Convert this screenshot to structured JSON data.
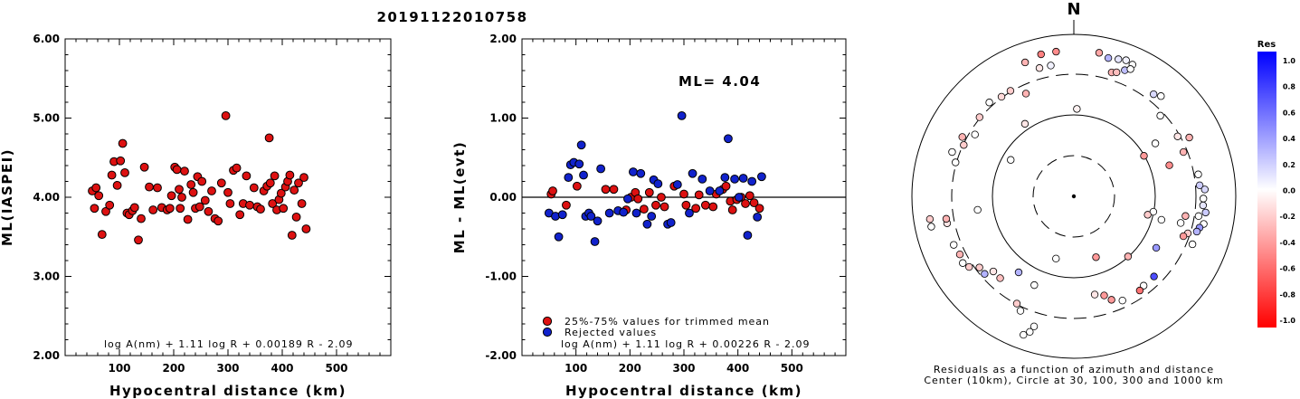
{
  "chart_data": [
    {
      "type": "scatter",
      "title": "20191122010758",
      "xlabel": "Hypocentral distance (km)",
      "ylabel": "ML(IASPEI)",
      "xlim": [
        0,
        600
      ],
      "ylim": [
        2.0,
        6.0
      ],
      "xticks": [
        "100",
        "200",
        "300",
        "400",
        "500"
      ],
      "yticks": [
        "2.00",
        "3.00",
        "4.00",
        "5.00",
        "6.00"
      ],
      "formula": "log A(nm) + 1.11 log R + 0.00189 R - 2.09",
      "colors": {
        "point": "#dd1111",
        "edge": "#000000"
      },
      "series": [
        {
          "x": [
            50,
            54,
            57,
            62,
            68,
            75,
            82,
            86,
            90,
            96,
            102,
            106,
            110,
            114,
            118,
            124,
            128,
            135,
            140,
            146,
            155,
            162,
            170,
            178,
            188,
            193,
            196,
            202,
            206,
            210,
            212,
            215,
            220,
            226,
            232,
            236,
            240,
            244,
            248,
            252,
            258,
            264,
            270,
            276,
            282,
            288,
            296,
            300,
            304,
            310,
            316,
            322,
            328,
            334,
            340,
            348,
            354,
            360,
            366,
            372,
            376,
            378,
            382,
            386,
            390,
            394,
            398,
            402,
            406,
            410,
            414,
            418,
            422,
            426,
            430,
            436,
            440,
            444
          ],
          "y": [
            4.08,
            3.86,
            4.12,
            4.02,
            3.53,
            3.82,
            3.9,
            4.28,
            4.45,
            4.15,
            4.46,
            4.68,
            4.31,
            3.8,
            3.78,
            3.83,
            3.87,
            3.46,
            3.73,
            4.38,
            4.13,
            3.84,
            4.12,
            3.87,
            3.84,
            3.86,
            4.02,
            4.38,
            4.35,
            4.1,
            3.86,
            4.0,
            4.33,
            3.72,
            4.16,
            4.06,
            3.86,
            4.26,
            3.88,
            4.2,
            3.96,
            3.82,
            4.08,
            3.73,
            3.7,
            4.18,
            5.03,
            4.06,
            3.92,
            4.34,
            4.37,
            3.78,
            3.92,
            4.27,
            3.9,
            4.12,
            3.88,
            3.85,
            4.08,
            4.14,
            4.75,
            4.18,
            3.92,
            4.27,
            3.84,
            3.97,
            4.05,
            3.86,
            4.13,
            4.2,
            4.28,
            3.52,
            4.09,
            3.75,
            4.18,
            3.92,
            4.25,
            3.6
          ]
        }
      ]
    },
    {
      "type": "scatter",
      "xlabel": "Hypocentral distance (km)",
      "ylabel": "ML - ML(evt)",
      "xlim": [
        0,
        600
      ],
      "ylim": [
        -2.0,
        2.0
      ],
      "xticks": [
        "100",
        "200",
        "300",
        "400",
        "500"
      ],
      "yticks": [
        "-2.00",
        "-1.00",
        "0.00",
        "1.00",
        "2.00"
      ],
      "annotation": "ML= 4.04",
      "formula": "log A(nm) + 1.11 log R + 0.00226 R - 2.09",
      "legend": [
        "25%-75% values for trimmed mean",
        "Rejected values"
      ],
      "colors": {
        "trimmed": "#dd1111",
        "rejected": "#1122cc",
        "edge": "#000000"
      },
      "series": [
        {
          "name": "25%-75% values for trimmed mean",
          "x": [
            54,
            57,
            82,
            102,
            155,
            170,
            193,
            202,
            210,
            215,
            226,
            236,
            248,
            258,
            264,
            282,
            300,
            304,
            322,
            328,
            340,
            354,
            360,
            372,
            378,
            386,
            390,
            398,
            406,
            414,
            422,
            430,
            440
          ],
          "y": [
            0.04,
            0.08,
            -0.1,
            0.14,
            0.1,
            0.1,
            -0.16,
            0.0,
            0.06,
            -0.02,
            -0.15,
            0.06,
            -0.1,
            0.0,
            -0.12,
            0.14,
            0.04,
            -0.1,
            -0.14,
            0.03,
            -0.1,
            -0.12,
            0.04,
            0.1,
            0.14,
            -0.05,
            -0.16,
            -0.03,
            0.0,
            -0.08,
            0.02,
            -0.07,
            -0.14
          ]
        },
        {
          "name": "Rejected values",
          "x": [
            50,
            62,
            68,
            75,
            86,
            90,
            96,
            106,
            110,
            114,
            118,
            124,
            128,
            135,
            140,
            146,
            162,
            178,
            188,
            196,
            206,
            212,
            220,
            232,
            240,
            244,
            252,
            270,
            276,
            288,
            296,
            310,
            316,
            334,
            348,
            366,
            376,
            382,
            394,
            402,
            410,
            418,
            426,
            436,
            444
          ],
          "y": [
            -0.2,
            -0.24,
            -0.5,
            -0.22,
            0.25,
            0.41,
            0.44,
            0.42,
            0.66,
            0.28,
            -0.24,
            -0.2,
            -0.24,
            -0.56,
            -0.3,
            0.36,
            -0.2,
            -0.17,
            -0.19,
            -0.02,
            0.32,
            -0.2,
            0.3,
            -0.34,
            -0.24,
            0.22,
            0.17,
            -0.34,
            -0.32,
            0.16,
            1.03,
            -0.2,
            0.3,
            0.23,
            0.08,
            0.08,
            0.25,
            0.74,
            0.23,
            0.0,
            0.24,
            -0.48,
            0.2,
            -0.25,
            0.26
          ]
        }
      ]
    },
    {
      "type": "scatter",
      "subtype": "polar",
      "north_label": "N",
      "caption_line1": "Residuals as a function of azimuth and distance",
      "caption_line2": "Center (10km), Circle at 30, 100, 300 and 1000 km",
      "colorbar_title": "Res",
      "colorbar_ticks": [
        "1.0",
        "0.8",
        "0.6",
        "0.4",
        "0.2",
        "0.0",
        "-0.2",
        "-0.4",
        "-0.6",
        "-0.8",
        "-1.0"
      ],
      "colorbar_colors": {
        "max": "#0000ff",
        "zero": "#ffffff",
        "min": "#ff0000"
      },
      "points": [
        {
          "az": 2,
          "r": 0.54,
          "res": -0.05
        },
        {
          "az": 350,
          "r": 0.82,
          "res": 0.05
        },
        {
          "az": 345,
          "r": 0.82,
          "res": -0.1
        },
        {
          "az": 340,
          "r": 0.88,
          "res": -0.3
        },
        {
          "az": 347,
          "r": 0.9,
          "res": -0.5
        },
        {
          "az": 353,
          "r": 0.9,
          "res": -0.45
        },
        {
          "az": 10,
          "r": 0.9,
          "res": -0.35
        },
        {
          "az": 14,
          "r": 0.88,
          "res": 0.3
        },
        {
          "az": 18,
          "r": 0.89,
          "res": 0.1
        },
        {
          "az": 21,
          "r": 0.9,
          "res": 0.05
        },
        {
          "az": 24,
          "r": 0.89,
          "res": 0.0
        },
        {
          "az": 17,
          "r": 0.8,
          "res": -0.3
        },
        {
          "az": 19,
          "r": 0.81,
          "res": -0.25
        },
        {
          "az": 22,
          "r": 0.84,
          "res": 0.25
        },
        {
          "az": 24,
          "r": 0.86,
          "res": 0.0
        },
        {
          "az": 38,
          "r": 0.8,
          "res": 0.15
        },
        {
          "az": 41,
          "r": 0.82,
          "res": 0.0
        },
        {
          "az": 47,
          "r": 0.73,
          "res": 0.0
        },
        {
          "az": 63,
          "r": 0.8,
          "res": -0.3
        },
        {
          "az": 60,
          "r": 0.74,
          "res": -0.1
        },
        {
          "az": 68,
          "r": 0.73,
          "res": -0.3
        },
        {
          "az": 57,
          "r": 0.6,
          "res": 0.0
        },
        {
          "az": 60,
          "r": 0.5,
          "res": -0.4
        },
        {
          "az": 72,
          "r": 0.62,
          "res": -0.45
        },
        {
          "az": 80,
          "r": 0.78,
          "res": 0.0
        },
        {
          "az": 85,
          "r": 0.78,
          "res": 0.2
        },
        {
          "az": 87,
          "r": 0.81,
          "res": 0.15
        },
        {
          "az": 91,
          "r": 0.8,
          "res": 0.0
        },
        {
          "az": 94,
          "r": 0.8,
          "res": 0.1
        },
        {
          "az": 97,
          "r": 0.82,
          "res": 0.2
        },
        {
          "az": 99,
          "r": 0.78,
          "res": 0.0
        },
        {
          "az": 102,
          "r": 0.82,
          "res": 0.0
        },
        {
          "az": 104,
          "r": 0.8,
          "res": 0.4
        },
        {
          "az": 106,
          "r": 0.79,
          "res": 0.3
        },
        {
          "az": 108,
          "r": 0.74,
          "res": -0.2
        },
        {
          "az": 100,
          "r": 0.7,
          "res": -0.3
        },
        {
          "az": 104,
          "r": 0.68,
          "res": 0.0
        },
        {
          "az": 110,
          "r": 0.72,
          "res": -0.4
        },
        {
          "az": 112,
          "r": 0.79,
          "res": 0.0
        },
        {
          "az": 101,
          "r": 0.5,
          "res": 0.0
        },
        {
          "az": 105,
          "r": 0.56,
          "res": 0.0
        },
        {
          "az": 104,
          "r": 0.47,
          "res": -0.2
        },
        {
          "az": 122,
          "r": 0.6,
          "res": 0.4
        },
        {
          "az": 138,
          "r": 0.5,
          "res": -0.3
        },
        {
          "az": 135,
          "r": 0.7,
          "res": 0.7
        },
        {
          "az": 142,
          "r": 0.7,
          "res": 0.0
        },
        {
          "az": 145,
          "r": 0.71,
          "res": -0.55
        },
        {
          "az": 155,
          "r": 0.71,
          "res": 0.0
        },
        {
          "az": 160,
          "r": 0.68,
          "res": -0.4
        },
        {
          "az": 163,
          "r": 0.64,
          "res": -0.4
        },
        {
          "az": 168,
          "r": 0.62,
          "res": -0.1
        },
        {
          "az": 160,
          "r": 0.4,
          "res": -0.4
        },
        {
          "az": 196,
          "r": 0.4,
          "res": 0.0
        },
        {
          "az": 204,
          "r": 0.6,
          "res": 0.0
        },
        {
          "az": 208,
          "r": 0.75,
          "res": -0.2
        },
        {
          "az": 205,
          "r": 0.78,
          "res": 0.0
        },
        {
          "az": 197,
          "r": 0.84,
          "res": 0.0
        },
        {
          "az": 198,
          "r": 0.88,
          "res": 0.0
        },
        {
          "az": 200,
          "r": 0.91,
          "res": 0.0
        },
        {
          "az": 216,
          "r": 0.58,
          "res": 0.3
        },
        {
          "az": 222,
          "r": 0.68,
          "res": -0.25
        },
        {
          "az": 227,
          "r": 0.68,
          "res": -0.1
        },
        {
          "az": 229,
          "r": 0.73,
          "res": 0.3
        },
        {
          "az": 233,
          "r": 0.73,
          "res": -0.2
        },
        {
          "az": 236,
          "r": 0.78,
          "res": -0.2
        },
        {
          "az": 239,
          "r": 0.8,
          "res": 0.0
        },
        {
          "az": 243,
          "r": 0.79,
          "res": -0.3
        },
        {
          "az": 248,
          "r": 0.8,
          "res": 0.0
        },
        {
          "az": 258,
          "r": 0.8,
          "res": -0.1
        },
        {
          "az": 258,
          "r": 0.9,
          "res": 0.0
        },
        {
          "az": 260,
          "r": 0.8,
          "res": -0.3
        },
        {
          "az": 261,
          "r": 0.9,
          "res": -0.2
        },
        {
          "az": 262,
          "r": 0.6,
          "res": 0.0
        },
        {
          "az": 286,
          "r": 0.76,
          "res": 0.0
        },
        {
          "az": 290,
          "r": 0.8,
          "res": 0.0
        },
        {
          "az": 295,
          "r": 0.75,
          "res": -0.2
        },
        {
          "az": 298,
          "r": 0.78,
          "res": -0.3
        },
        {
          "az": 302,
          "r": 0.72,
          "res": 0.0
        },
        {
          "az": 310,
          "r": 0.76,
          "res": -0.2
        },
        {
          "az": 318,
          "r": 0.78,
          "res": 0.0
        },
        {
          "az": 324,
          "r": 0.76,
          "res": -0.15
        },
        {
          "az": 329,
          "r": 0.76,
          "res": -0.2
        },
        {
          "az": 335,
          "r": 0.7,
          "res": -0.3
        },
        {
          "az": 326,
          "r": 0.54,
          "res": -0.1
        },
        {
          "az": 300,
          "r": 0.45,
          "res": 0.0
        }
      ]
    }
  ]
}
